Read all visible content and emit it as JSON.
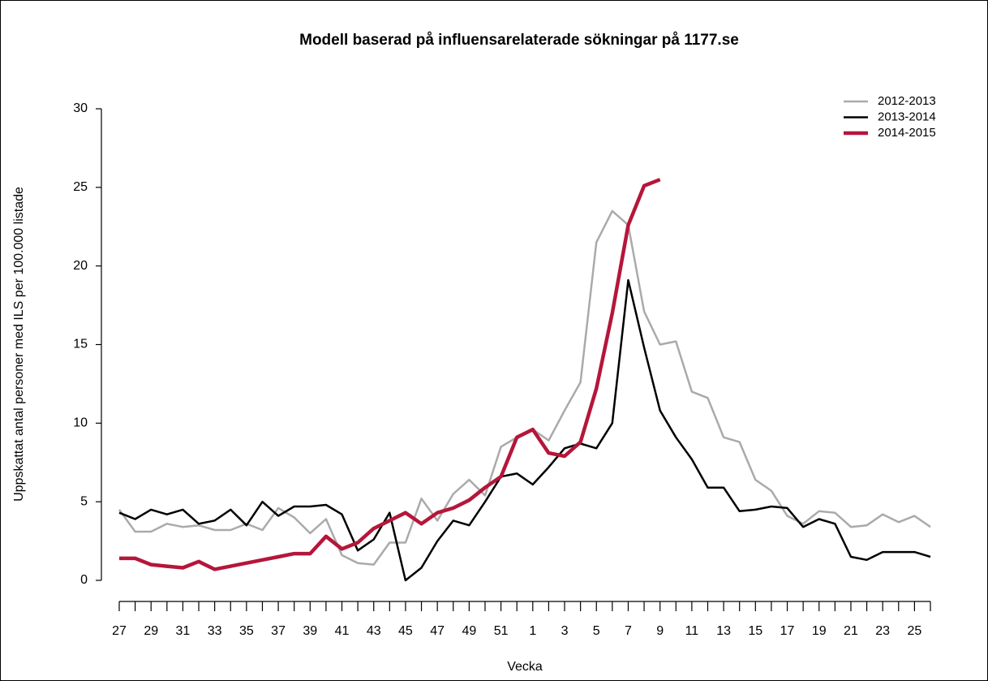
{
  "chart_data": {
    "type": "line",
    "title": "Modell baserad på influensarelaterade sökningar på 1177.se",
    "y_label": "Uppskattat antal personer med ILS per 100.000 listade",
    "x_label": "Vecka",
    "categories": [
      "27",
      null,
      "29",
      null,
      "31",
      null,
      "33",
      null,
      "35",
      null,
      "37",
      null,
      "39",
      null,
      "41",
      null,
      "43",
      null,
      "45",
      null,
      "47",
      null,
      "49",
      null,
      "51",
      null,
      "1",
      null,
      "3",
      null,
      "5",
      null,
      "7",
      null,
      "9",
      null,
      "11",
      null,
      "13",
      null,
      "15",
      null,
      "17",
      null,
      "19",
      null,
      "21",
      null,
      "23",
      null,
      "25",
      null
    ],
    "ylim": [
      0,
      30
    ],
    "yticks": [
      0,
      5,
      10,
      15,
      20,
      25,
      30
    ],
    "legend": "top-right",
    "series": [
      {
        "name": "2012-2013",
        "color": "#aaaaaa",
        "line_width": 2.5,
        "values": [
          4.5,
          3.1,
          3.1,
          3.6,
          3.4,
          3.5,
          3.2,
          3.2,
          3.6,
          3.2,
          4.6,
          4.0,
          3.0,
          3.9,
          1.6,
          1.1,
          1.0,
          2.4,
          2.4,
          5.2,
          3.8,
          5.5,
          6.4,
          5.4,
          8.5,
          9.1,
          9.6,
          8.9,
          10.8,
          12.6,
          21.5,
          23.5,
          22.6,
          17.1,
          15.0,
          15.2,
          12.0,
          11.6,
          9.1,
          8.8,
          6.4,
          5.7,
          4.1,
          3.6,
          4.4,
          4.3,
          3.4,
          3.5,
          4.2,
          3.7,
          4.1,
          3.4
        ]
      },
      {
        "name": "2013-2014",
        "color": "#000000",
        "line_width": 2.5,
        "values": [
          4.3,
          3.9,
          4.5,
          4.2,
          4.5,
          3.6,
          3.8,
          4.5,
          3.5,
          5.0,
          4.1,
          4.7,
          4.7,
          4.8,
          4.2,
          1.9,
          2.6,
          4.3,
          0.0,
          0.8,
          2.5,
          3.8,
          3.5,
          5.0,
          6.6,
          6.8,
          6.1,
          7.2,
          8.4,
          8.7,
          8.4,
          10.0,
          19.1,
          14.8,
          10.8,
          9.1,
          7.7,
          5.9,
          5.9,
          4.4,
          4.5,
          4.7,
          4.6,
          3.4,
          3.9,
          3.6,
          1.5,
          1.3,
          1.8,
          1.8,
          1.8,
          1.5
        ]
      },
      {
        "name": "2014-2015",
        "color": "#b5163a",
        "line_width": 4.5,
        "values": [
          1.4,
          1.4,
          1.0,
          0.9,
          0.8,
          1.2,
          0.7,
          0.9,
          1.1,
          1.3,
          1.5,
          1.7,
          1.7,
          2.8,
          2.0,
          2.4,
          3.3,
          3.8,
          4.3,
          3.6,
          4.3,
          4.6,
          5.1,
          5.9,
          6.6,
          9.1,
          9.6,
          8.1,
          7.9,
          8.8,
          12.2,
          17.0,
          22.6,
          25.1,
          25.5,
          null,
          null,
          null,
          null,
          null,
          null,
          null,
          null,
          null,
          null,
          null,
          null,
          null,
          null,
          null,
          null,
          null
        ]
      }
    ]
  }
}
